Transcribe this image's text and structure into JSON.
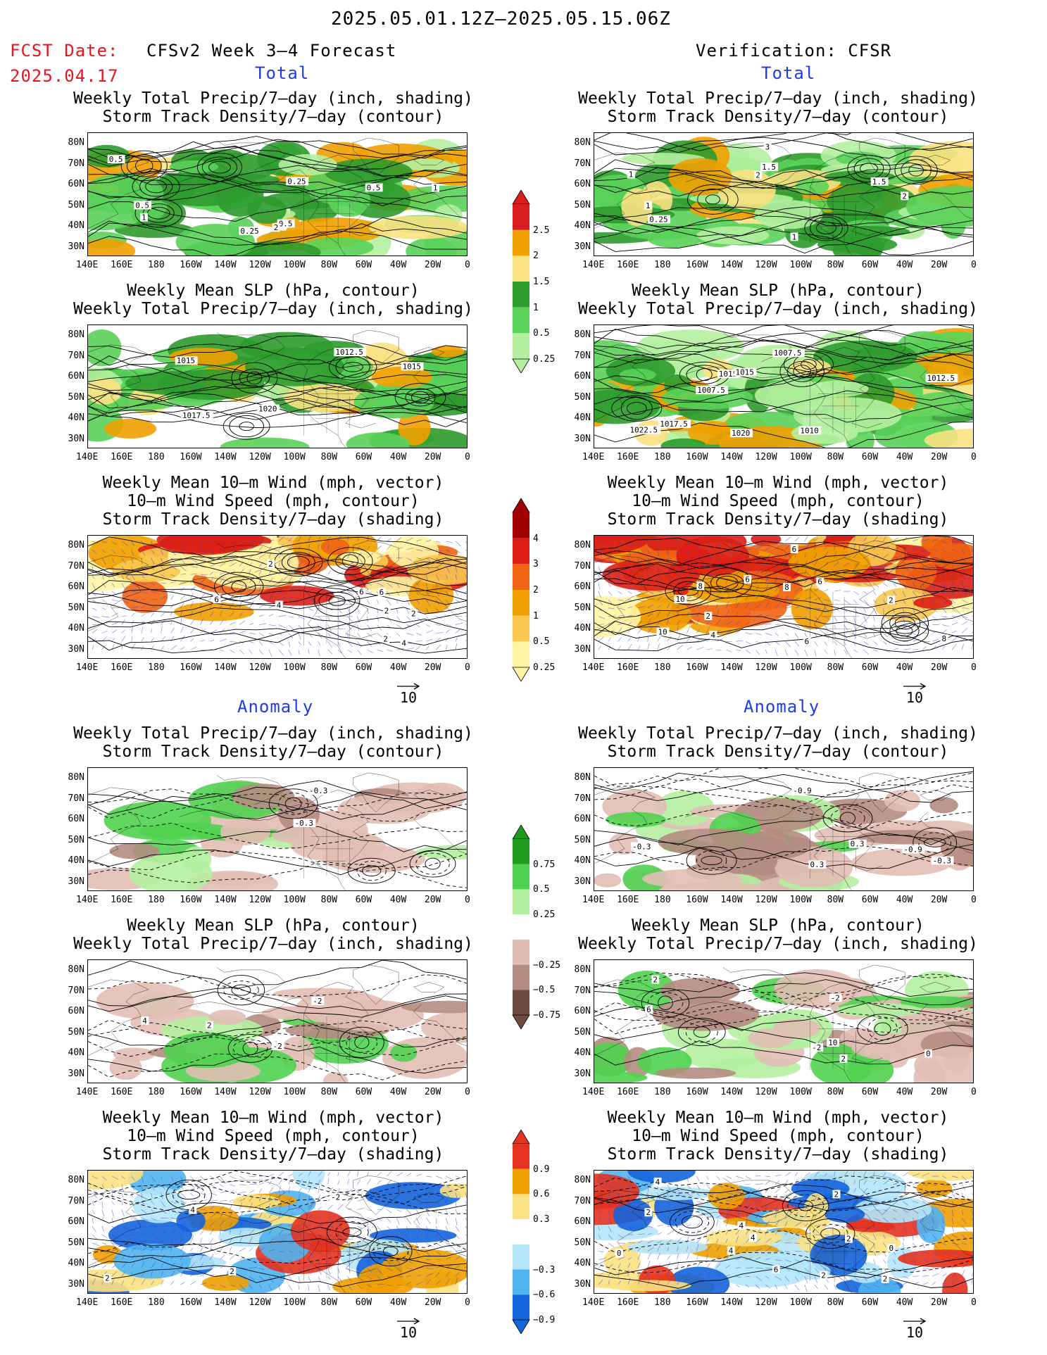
{
  "header": {
    "period": "2025.05.01.12Z–2025.05.15.06Z",
    "fcst_label": "FCST Date:",
    "fcst_date": "2025.04.17",
    "model": "CFSv2 Week 3–4 Forecast",
    "verification": "Verification: CFSR"
  },
  "sections": {
    "total": "Total",
    "anomaly": "Anomaly"
  },
  "titles": {
    "precip_storm": [
      "Weekly Total Precip/7–day (inch, shading)",
      "Storm Track Density/7–day (contour)"
    ],
    "slp_precip": [
      "Weekly Mean SLP (hPa, contour)",
      "Weekly Total Precip/7–day (inch, shading)"
    ],
    "wind_storm": [
      "Weekly Mean 10–m Wind (mph, vector)",
      "10–m Wind Speed (mph, contour)",
      "Storm Track Density/7–day (shading)"
    ]
  },
  "axes": {
    "lat_labels": [
      "80N",
      "70N",
      "60N",
      "50N",
      "40N",
      "30N"
    ],
    "lon_labels": [
      "140E",
      "160E",
      "180",
      "160W",
      "140W",
      "120W",
      "100W",
      "80W",
      "60W",
      "40W",
      "20W",
      "0"
    ]
  },
  "vector_ref": "10",
  "colorbars": {
    "precip_total": {
      "labels": [
        "2.5",
        "2",
        "1.5",
        "1",
        "0.5",
        "0.25"
      ],
      "colors": [
        "#d81e1e",
        "#f0a000",
        "#fae182",
        "#2d9b2d",
        "#5ad25a",
        "#b4f0a0"
      ]
    },
    "storm_total": {
      "labels": [
        "4",
        "3",
        "2",
        "1",
        "0.5",
        "0.25"
      ],
      "colors": [
        "#a00000",
        "#dc1e14",
        "#f06414",
        "#f0a000",
        "#fac850",
        "#fff5a5"
      ]
    },
    "precip_anom": {
      "labels": [
        "0.75",
        "0.5",
        "0.25",
        "−0.25",
        "−0.5",
        "−0.75"
      ],
      "colors": [
        "#1e9b1e",
        "#50d250",
        "#b4f0a0",
        "#ffffff",
        "#e1beb4",
        "#b48c82",
        "#6e4b41"
      ]
    },
    "storm_anom": {
      "labels": [
        "0.9",
        "0.6",
        "0.3",
        "−0.3",
        "−0.6",
        "−0.9"
      ],
      "colors": [
        "#e6321e",
        "#f0a000",
        "#fae182",
        "#ffffff",
        "#b4e6fa",
        "#50b4f0",
        "#1464dc"
      ]
    }
  },
  "panels": [
    {
      "id": "fc-total-precip",
      "labels": [
        "0.25",
        "0.5",
        "0.25",
        "0.5",
        "1",
        "1",
        "2",
        "0.5",
        "0.5"
      ]
    },
    {
      "id": "ver-total-precip",
      "labels": [
        "2",
        "2",
        "0.25",
        "1.5",
        "1",
        "1",
        "3",
        "1.5",
        "1"
      ]
    },
    {
      "id": "fc-total-slp",
      "labels": [
        "1020",
        "1015",
        "1012.5",
        "1015",
        "1017.5"
      ]
    },
    {
      "id": "ver-total-slp",
      "labels": [
        "1007.5",
        "1010",
        "1007.5",
        "1015",
        "1020",
        "1012.5",
        "1015",
        "1017.5",
        "1022.5"
      ]
    },
    {
      "id": "fc-total-wind",
      "labels": [
        "4",
        "2",
        "2",
        "6",
        "2",
        "4",
        "6",
        "2",
        "6"
      ]
    },
    {
      "id": "ver-total-wind",
      "labels": [
        "6",
        "8",
        "6",
        "10",
        "6",
        "2",
        "2",
        "8",
        "6",
        "10",
        "4",
        "8"
      ]
    },
    {
      "id": "fc-anom-precip",
      "labels": [
        "-0.3",
        "-0.3"
      ]
    },
    {
      "id": "ver-anom-precip",
      "labels": [
        "0.3",
        "-0.3",
        "-0.9",
        "-0.3",
        "-0.9",
        "0.3"
      ]
    },
    {
      "id": "fc-anom-slp",
      "labels": [
        "-2",
        "2",
        "4",
        "-2"
      ]
    },
    {
      "id": "ver-anom-slp",
      "labels": [
        "10",
        "-2",
        "2",
        "0",
        "2",
        "-2",
        "6"
      ]
    },
    {
      "id": "fc-anom-wind",
      "labels": [
        "-2",
        "2",
        "4",
        "2"
      ]
    },
    {
      "id": "ver-anom-wind",
      "labels": [
        "2",
        "4",
        "0",
        "2",
        "4",
        "6",
        "0",
        "2",
        "4",
        "2",
        "4",
        "2"
      ]
    }
  ]
}
